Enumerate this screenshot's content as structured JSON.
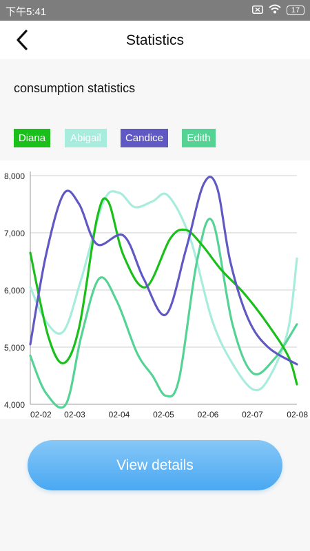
{
  "status_bar": {
    "time": "下午5:41",
    "battery": "17"
  },
  "header": {
    "title": "Statistics"
  },
  "section_title": "consumption statistics",
  "legend": [
    {
      "label": "Diana",
      "color": "#1bbf1b",
      "text_color": "#ffffff"
    },
    {
      "label": "Abigail",
      "color": "#a7ecdd",
      "text_color": "#ffffff"
    },
    {
      "label": "Candice",
      "color": "#6159c3",
      "text_color": "#ffffff"
    },
    {
      "label": "Edith",
      "color": "#55d395",
      "text_color": "#ffffff"
    }
  ],
  "chart_data": {
    "type": "line",
    "x": [
      "02-02",
      "02-03",
      "02-04",
      "02-05",
      "02-06",
      "02-07",
      "02-08"
    ],
    "ylim": [
      4000,
      8000
    ],
    "yticks": [
      "4,000",
      "5,000",
      "6,000",
      "7,000",
      "8,000"
    ],
    "grid": true,
    "series": [
      {
        "name": "Diana",
        "color": "#1bbf1b",
        "points": [
          [
            0,
            6650
          ],
          [
            0.4,
            5200
          ],
          [
            0.75,
            4720
          ],
          [
            1.1,
            5350
          ],
          [
            1.5,
            7250
          ],
          [
            1.75,
            7550
          ],
          [
            2.1,
            6600
          ],
          [
            2.6,
            6050
          ],
          [
            3.15,
            6900
          ],
          [
            3.5,
            7050
          ],
          [
            3.85,
            6800
          ],
          [
            4.3,
            6350
          ],
          [
            4.8,
            5950
          ],
          [
            5.3,
            5450
          ],
          [
            5.8,
            4850
          ],
          [
            6,
            4350
          ]
        ]
      },
      {
        "name": "Abigail",
        "color": "#a7ecdd",
        "points": [
          [
            0,
            6050
          ],
          [
            0.35,
            5450
          ],
          [
            0.75,
            5280
          ],
          [
            1.15,
            6200
          ],
          [
            1.65,
            7550
          ],
          [
            2.0,
            7700
          ],
          [
            2.35,
            7450
          ],
          [
            2.75,
            7550
          ],
          [
            3.1,
            7650
          ],
          [
            3.6,
            6900
          ],
          [
            4.1,
            5450
          ],
          [
            4.6,
            4650
          ],
          [
            5.05,
            4250
          ],
          [
            5.4,
            4500
          ],
          [
            5.8,
            5300
          ],
          [
            6,
            6550
          ]
        ]
      },
      {
        "name": "Candice",
        "color": "#6159c3",
        "points": [
          [
            0,
            5050
          ],
          [
            0.35,
            6600
          ],
          [
            0.75,
            7680
          ],
          [
            1.1,
            7500
          ],
          [
            1.5,
            6800
          ],
          [
            2.1,
            6950
          ],
          [
            2.55,
            6200
          ],
          [
            3.05,
            5570
          ],
          [
            3.5,
            6700
          ],
          [
            3.9,
            7850
          ],
          [
            4.2,
            7800
          ],
          [
            4.5,
            6500
          ],
          [
            4.9,
            5500
          ],
          [
            5.35,
            5000
          ],
          [
            6,
            4700
          ]
        ]
      },
      {
        "name": "Edith",
        "color": "#55d395",
        "points": [
          [
            0,
            4850
          ],
          [
            0.35,
            4200
          ],
          [
            0.8,
            4000
          ],
          [
            1.15,
            5200
          ],
          [
            1.55,
            6200
          ],
          [
            1.95,
            5800
          ],
          [
            2.4,
            4900
          ],
          [
            2.75,
            4500
          ],
          [
            3.05,
            4150
          ],
          [
            3.35,
            4450
          ],
          [
            3.75,
            6500
          ],
          [
            4.1,
            7200
          ],
          [
            4.55,
            5400
          ],
          [
            5.0,
            4550
          ],
          [
            5.5,
            4800
          ],
          [
            6,
            5400
          ]
        ]
      }
    ]
  },
  "button": {
    "label": "View details"
  }
}
